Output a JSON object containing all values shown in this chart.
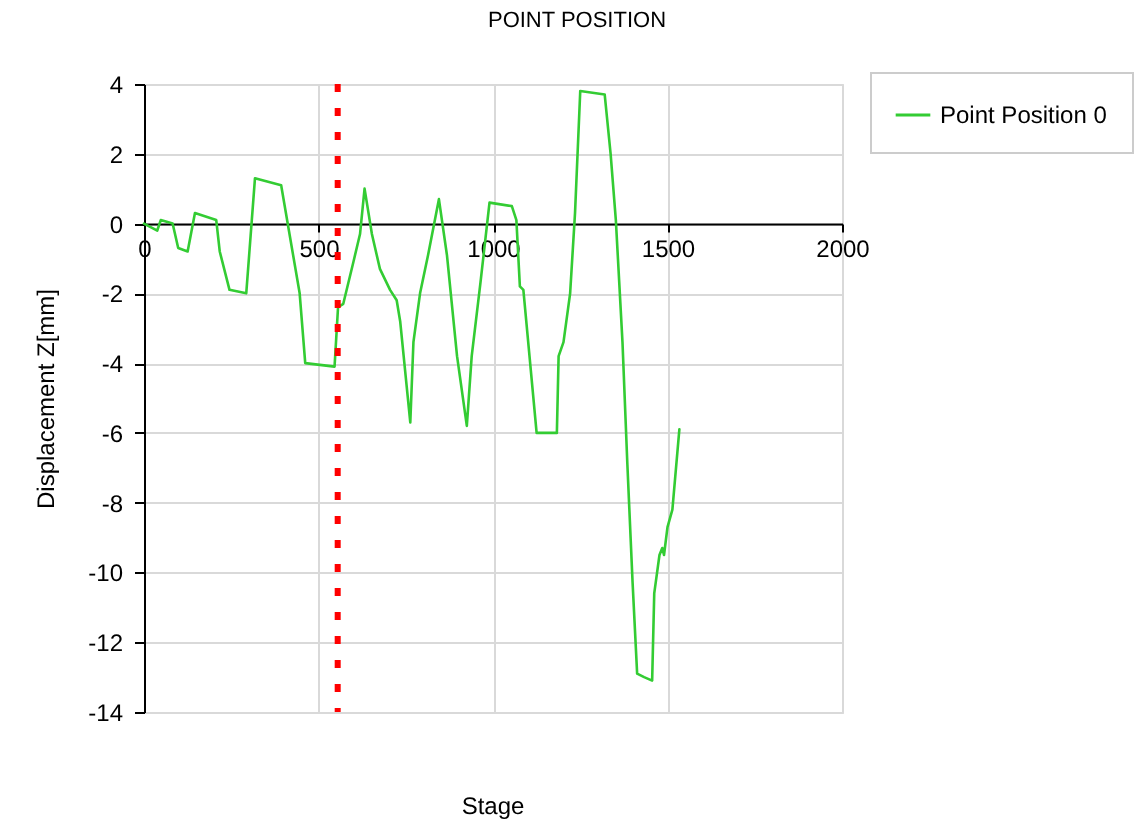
{
  "chart_data": {
    "type": "line",
    "title": "POINT POSITION",
    "xlabel": "Stage",
    "ylabel": "Displacement Z[mm]",
    "x": [
      0,
      38,
      48,
      82,
      98,
      125,
      146,
      207,
      217,
      245,
      293,
      318,
      393,
      446,
      462,
      546,
      556,
      571,
      600,
      619,
      632,
      653,
      676,
      705,
      724,
      734,
      763,
      772,
      791,
      814,
      845,
      868,
      897,
      925,
      939,
      964,
      990,
      1054,
      1067,
      1077,
      1087,
      1125,
      1183,
      1188,
      1202,
      1221,
      1235,
      1250,
      1320,
      1337,
      1352,
      1371,
      1385,
      1400,
      1413,
      1433,
      1456,
      1462,
      1477,
      1485,
      1490,
      1500,
      1514,
      1534
    ],
    "series": [
      {
        "name": "Point Position 0",
        "color": "#33cc33",
        "values": [
          0.0,
          -0.2,
          0.1,
          0.0,
          -0.7,
          -0.8,
          0.3,
          0.1,
          -0.8,
          -1.9,
          -2.0,
          1.3,
          1.1,
          -2.0,
          -4.0,
          -4.1,
          -2.4,
          -2.3,
          -1.1,
          -0.3,
          1.0,
          -0.3,
          -1.3,
          -1.9,
          -2.2,
          -2.8,
          -5.7,
          -3.4,
          -2.0,
          -0.9,
          0.7,
          -0.9,
          -3.8,
          -5.8,
          -3.8,
          -1.7,
          0.6,
          0.5,
          0.1,
          -1.8,
          -1.9,
          -6.0,
          -6.0,
          -3.8,
          -3.4,
          -2.0,
          0.3,
          3.8,
          3.7,
          2.0,
          0.1,
          -3.4,
          -6.9,
          -10.3,
          -12.9,
          -13.0,
          -13.1,
          -10.6,
          -9.5,
          -9.3,
          -9.5,
          -8.7,
          -8.2,
          -5.9
        ]
      }
    ],
    "xlim": [
      0,
      2000
    ],
    "xticks": [
      0,
      500,
      1000,
      1500,
      2000
    ],
    "ylim": [
      -14,
      4
    ],
    "yticks": [
      -14,
      -12,
      -10,
      -8,
      -6,
      -4,
      -2,
      0,
      2,
      4
    ],
    "grid": true,
    "legend": "top right",
    "ref_lines": [
      {
        "axis": "x",
        "value": 555,
        "color": "#ff0000",
        "line_style": "dotted"
      }
    ]
  }
}
